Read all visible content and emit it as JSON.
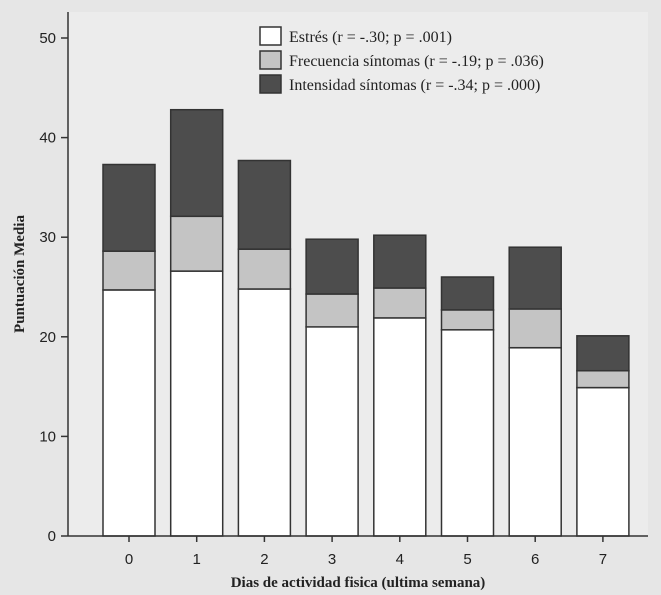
{
  "chart_data": {
    "type": "bar",
    "stacked": true,
    "categories": [
      "0",
      "1",
      "2",
      "3",
      "4",
      "5",
      "6",
      "7"
    ],
    "series": [
      {
        "name": "Estrés (r = -.30; p = .001)",
        "color": "#ffffff",
        "values": [
          24.7,
          26.6,
          24.8,
          21.0,
          21.9,
          20.7,
          18.9,
          14.9
        ]
      },
      {
        "name": "Frecuencia síntomas (r = -.19; p = .036)",
        "color": "#c4c4c4",
        "values": [
          3.9,
          5.5,
          4.0,
          3.3,
          3.0,
          2.0,
          3.9,
          1.7
        ]
      },
      {
        "name": "Intensidad síntomas (r = -.34; p = .000)",
        "color": "#4d4d4d",
        "values": [
          8.7,
          10.7,
          8.9,
          5.5,
          5.3,
          3.3,
          6.2,
          3.5
        ]
      }
    ],
    "xlabel": "Dias de actividad fisica (ultima semana)",
    "ylabel": "Puntuación Media",
    "ylim": [
      0,
      50
    ],
    "yticks": [
      0,
      10,
      20,
      30,
      40,
      50
    ],
    "grid": false,
    "legend": "top-right"
  }
}
